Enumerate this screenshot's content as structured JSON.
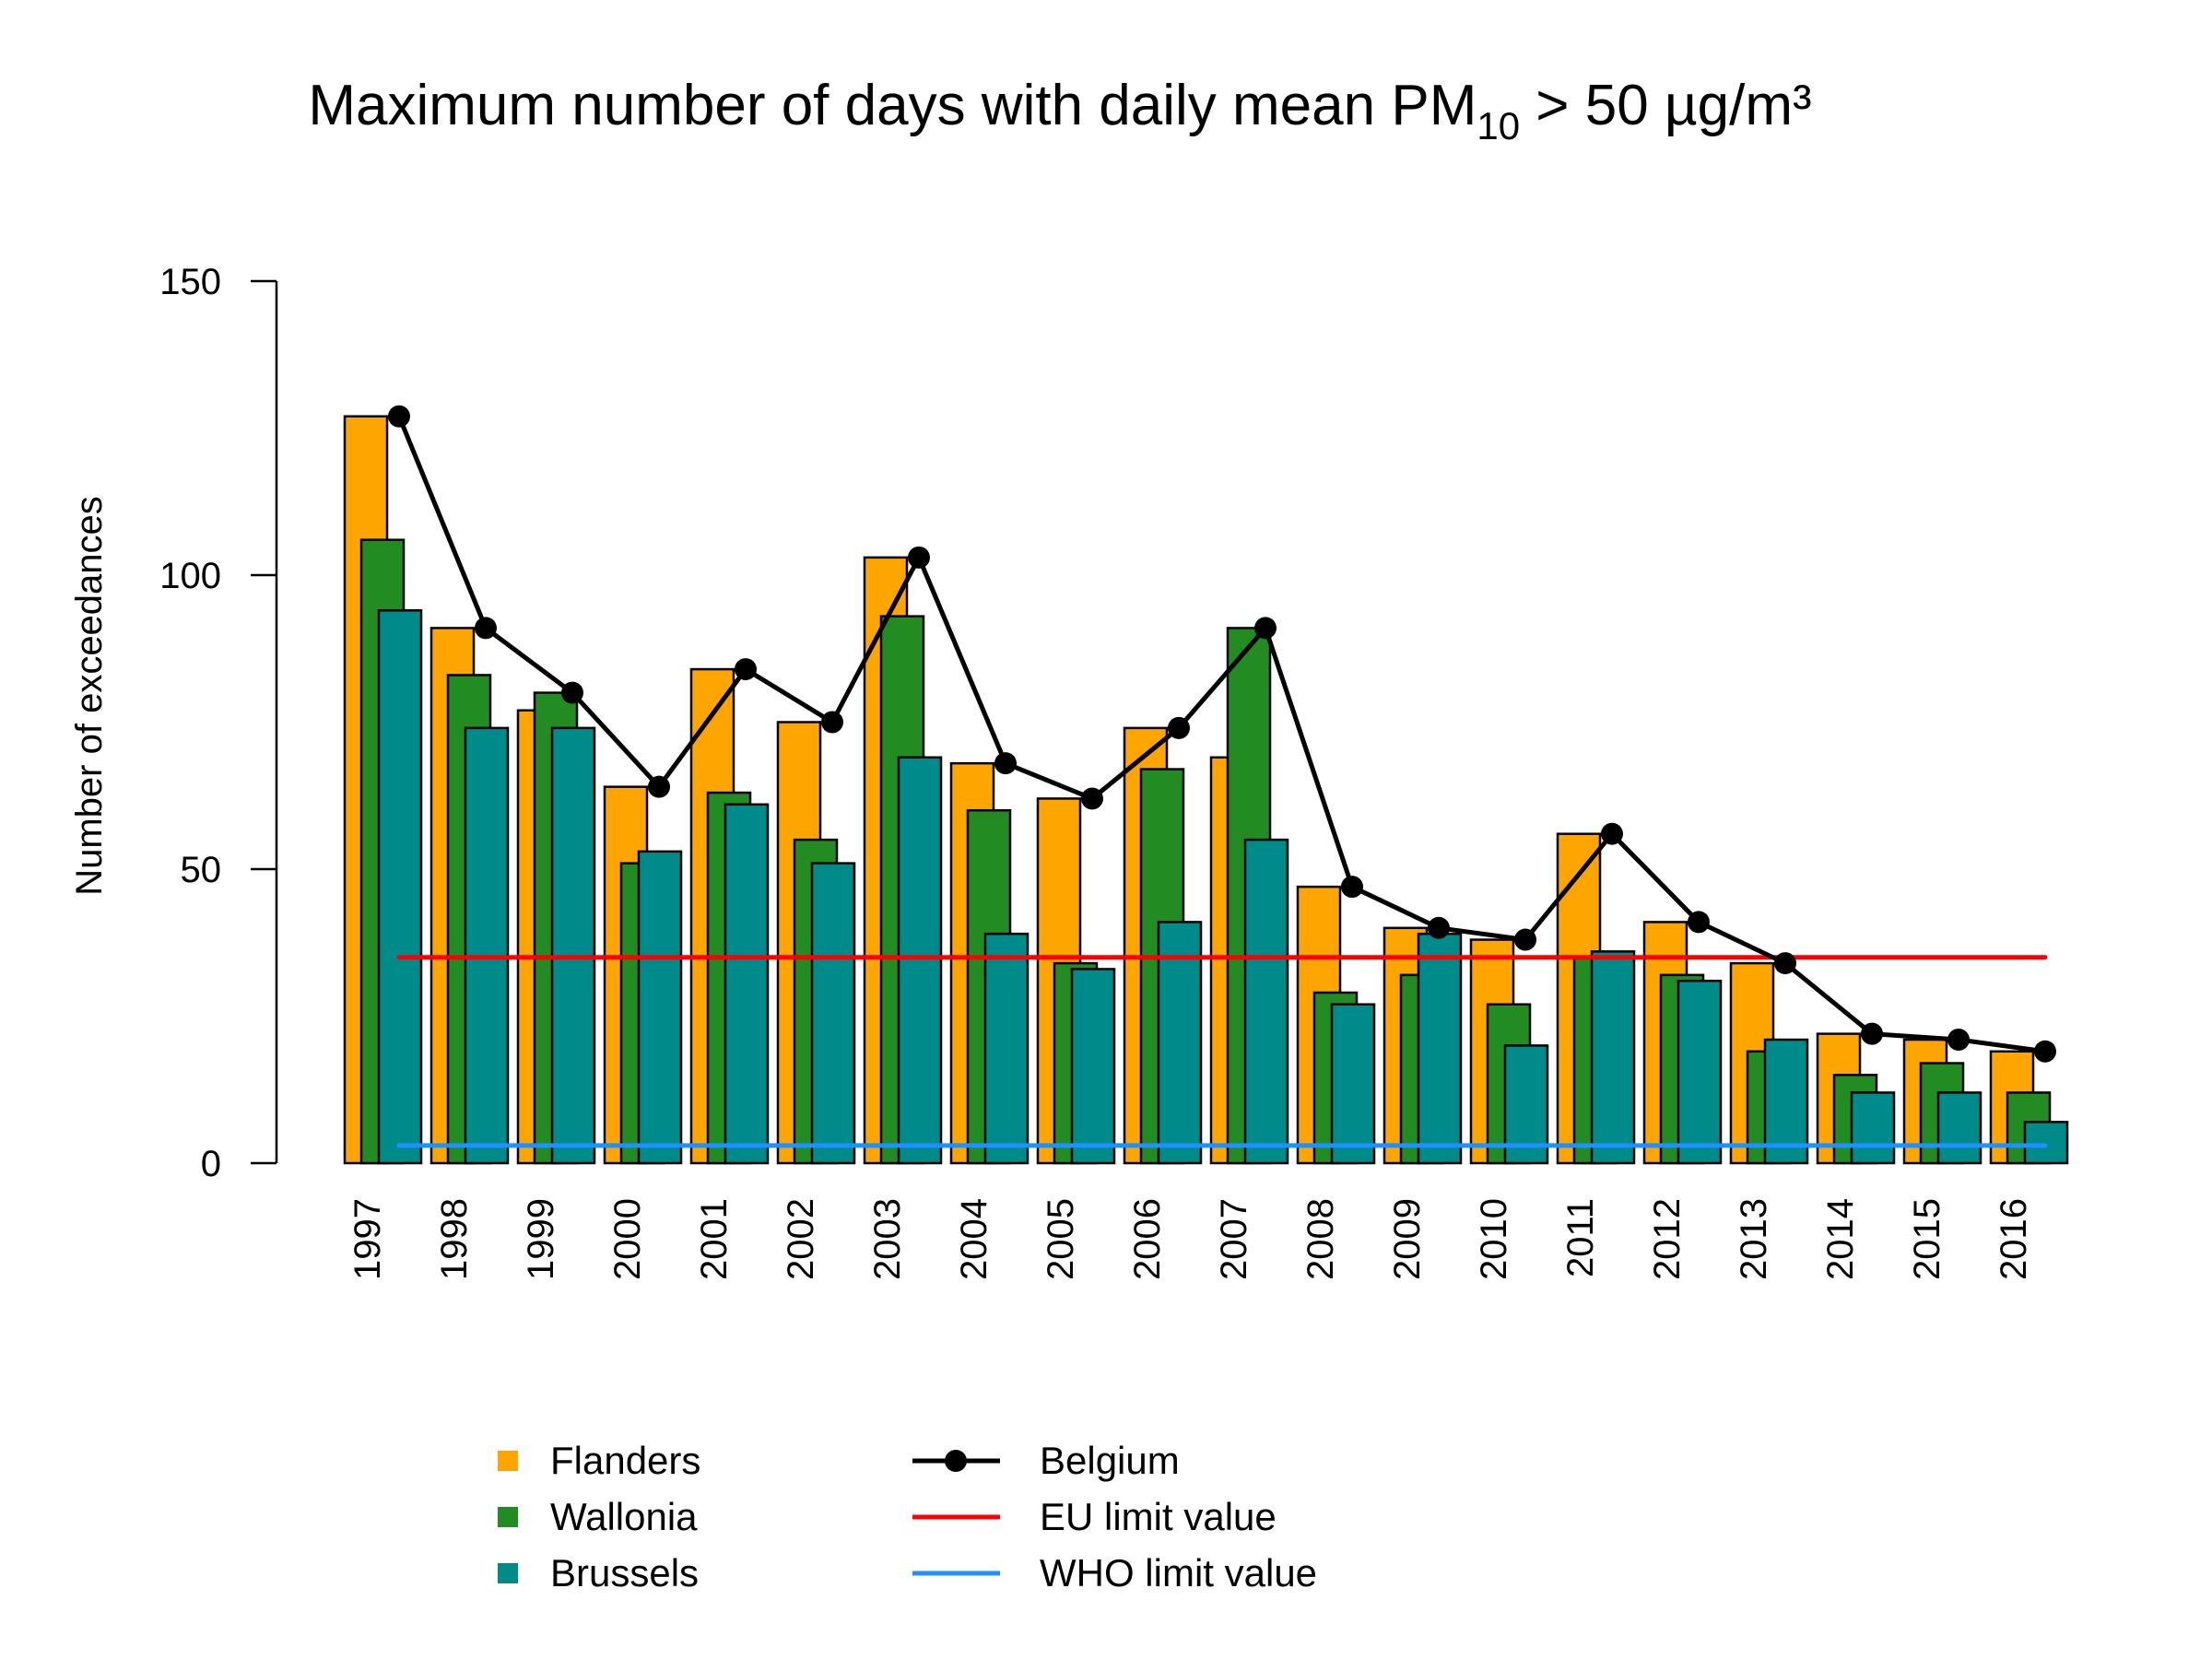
{
  "chart_data": {
    "type": "bar",
    "title_main": "Maximum number of days with daily mean PM",
    "title_sub": "10",
    "title_rest": " > 50 µg/m³",
    "xlabel": "",
    "ylabel": "Number of exceedances",
    "ylim": [
      0,
      150
    ],
    "yticks": [
      "0",
      "50",
      "100",
      "150"
    ],
    "categories": [
      "1997",
      "1998",
      "1999",
      "2000",
      "2001",
      "2002",
      "2003",
      "2004",
      "2005",
      "2006",
      "2007",
      "2008",
      "2009",
      "2010",
      "2011",
      "2012",
      "2013",
      "2014",
      "2015",
      "2016"
    ],
    "series": [
      {
        "name": "Flanders",
        "type": "bar",
        "color": "#FFA500",
        "values": [
          127,
          91,
          77,
          64,
          84,
          75,
          103,
          68,
          62,
          74,
          69,
          47,
          40,
          38,
          56,
          41,
          34,
          22,
          21,
          19
        ]
      },
      {
        "name": "Wallonia",
        "type": "bar",
        "color": "#228B22",
        "values": [
          106,
          83,
          80,
          51,
          63,
          55,
          93,
          60,
          34,
          67,
          91,
          29,
          32,
          27,
          35,
          32,
          19,
          15,
          17,
          12
        ]
      },
      {
        "name": "Brussels",
        "type": "bar",
        "color": "#008B8B",
        "values": [
          94,
          74,
          74,
          53,
          61,
          51,
          69,
          39,
          33,
          41,
          55,
          27,
          39,
          20,
          36,
          31,
          21,
          12,
          12,
          7
        ]
      },
      {
        "name": "Belgium",
        "type": "line",
        "color": "#000000",
        "values": [
          127,
          91,
          80,
          64,
          84,
          75,
          103,
          68,
          62,
          74,
          91,
          47,
          40,
          38,
          56,
          41,
          34,
          22,
          21,
          19
        ]
      },
      {
        "name": "EU limit value",
        "type": "hline",
        "color": "#FF0000",
        "value": 35
      },
      {
        "name": "WHO limit value",
        "type": "hline",
        "color": "#1E90FF",
        "value": 3
      }
    ],
    "grid": false,
    "legend_position": "bottom"
  }
}
